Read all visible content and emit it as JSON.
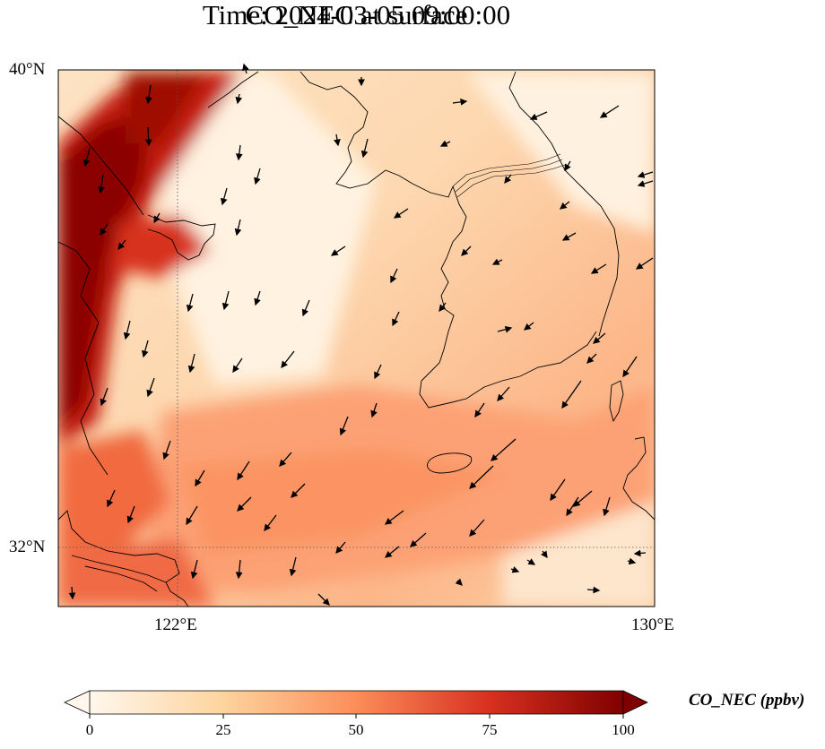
{
  "title": {
    "line1": "CO_NEC at surface",
    "line2": "Time: 2024-03-05 09:00:00"
  },
  "axes": {
    "lat_labels": [
      "40°N",
      "32°N"
    ],
    "lon_labels": [
      "122°E",
      "130°E"
    ],
    "gridlines": "dotted"
  },
  "map": {
    "lon_range": [
      120,
      130
    ],
    "lat_range": [
      31,
      40
    ],
    "projection": "PlateCarree",
    "field": "CO_NEC",
    "level": "surface",
    "vectors": "wind arrows",
    "features": [
      "coastlines",
      "country borders"
    ]
  },
  "colorbar": {
    "label": "CO_NEC (ppbv)",
    "ticks": [
      "0",
      "25",
      "50",
      "75",
      "100"
    ],
    "range": [
      0,
      100
    ],
    "colormap": "OrRd",
    "extend": "both",
    "orientation": "horizontal"
  }
}
